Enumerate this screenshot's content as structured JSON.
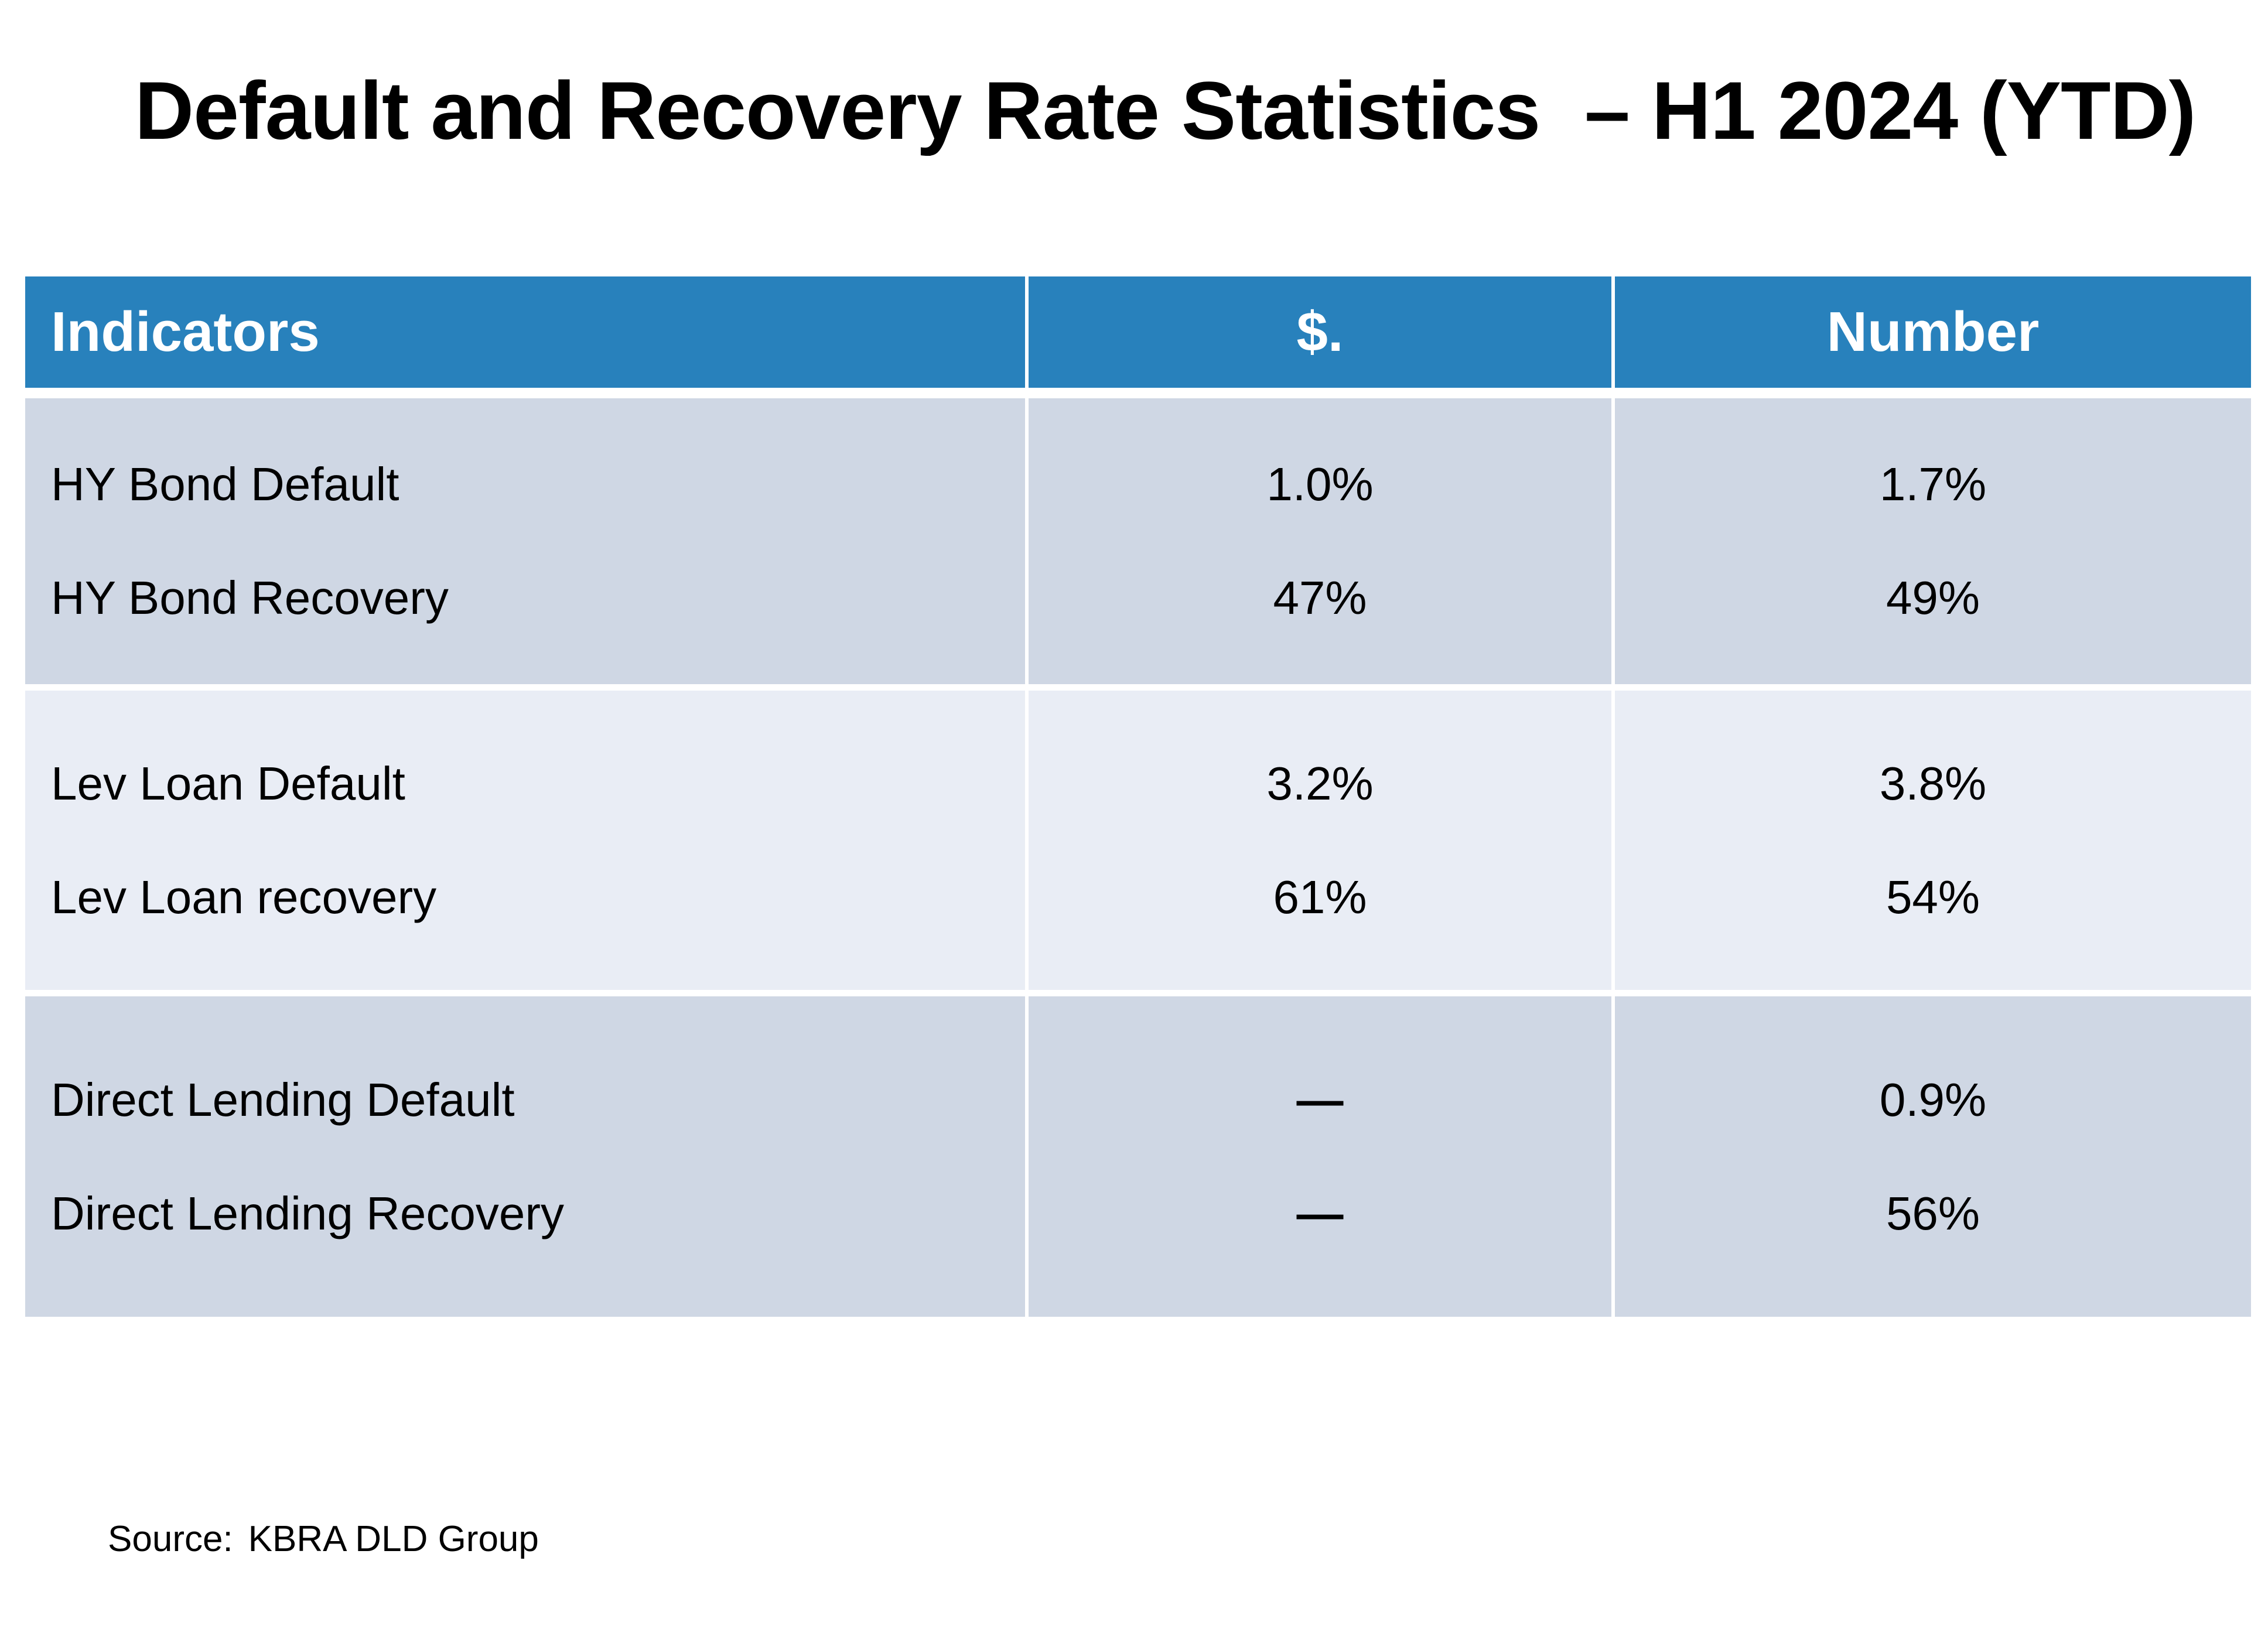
{
  "title": "Default and Recovery Rate Statistics  – H1 2024 (YTD)",
  "table": {
    "columns": [
      "Indicators",
      "$.",
      "Number"
    ],
    "groups": [
      {
        "rows": [
          {
            "label": "HY Bond Default",
            "dollar": "1.0%",
            "number": "1.7%"
          },
          {
            "label": "HY Bond Recovery",
            "dollar": "47%",
            "number": "49%"
          }
        ]
      },
      {
        "rows": [
          {
            "label": "Lev Loan Default",
            "dollar": "3.2%",
            "number": "3.8%"
          },
          {
            "label": "Lev Loan recovery",
            "dollar": "61%",
            "number": "54%"
          }
        ]
      },
      {
        "rows": [
          {
            "label": "Direct Lending Default",
            "dollar": "—",
            "number": "0.9%"
          },
          {
            "label": "Direct Lending Recovery",
            "dollar": "—",
            "number": "56%"
          }
        ]
      }
    ]
  },
  "source": {
    "label": "Source:",
    "value": "KBRA DLD Group"
  },
  "colors": {
    "header_bg": "#2881BC",
    "header_text": "#FFFFFF",
    "band_dark": "#CFD7E4",
    "band_light": "#E9EDF5",
    "text": "#000000",
    "page_bg": "#FFFFFF"
  }
}
